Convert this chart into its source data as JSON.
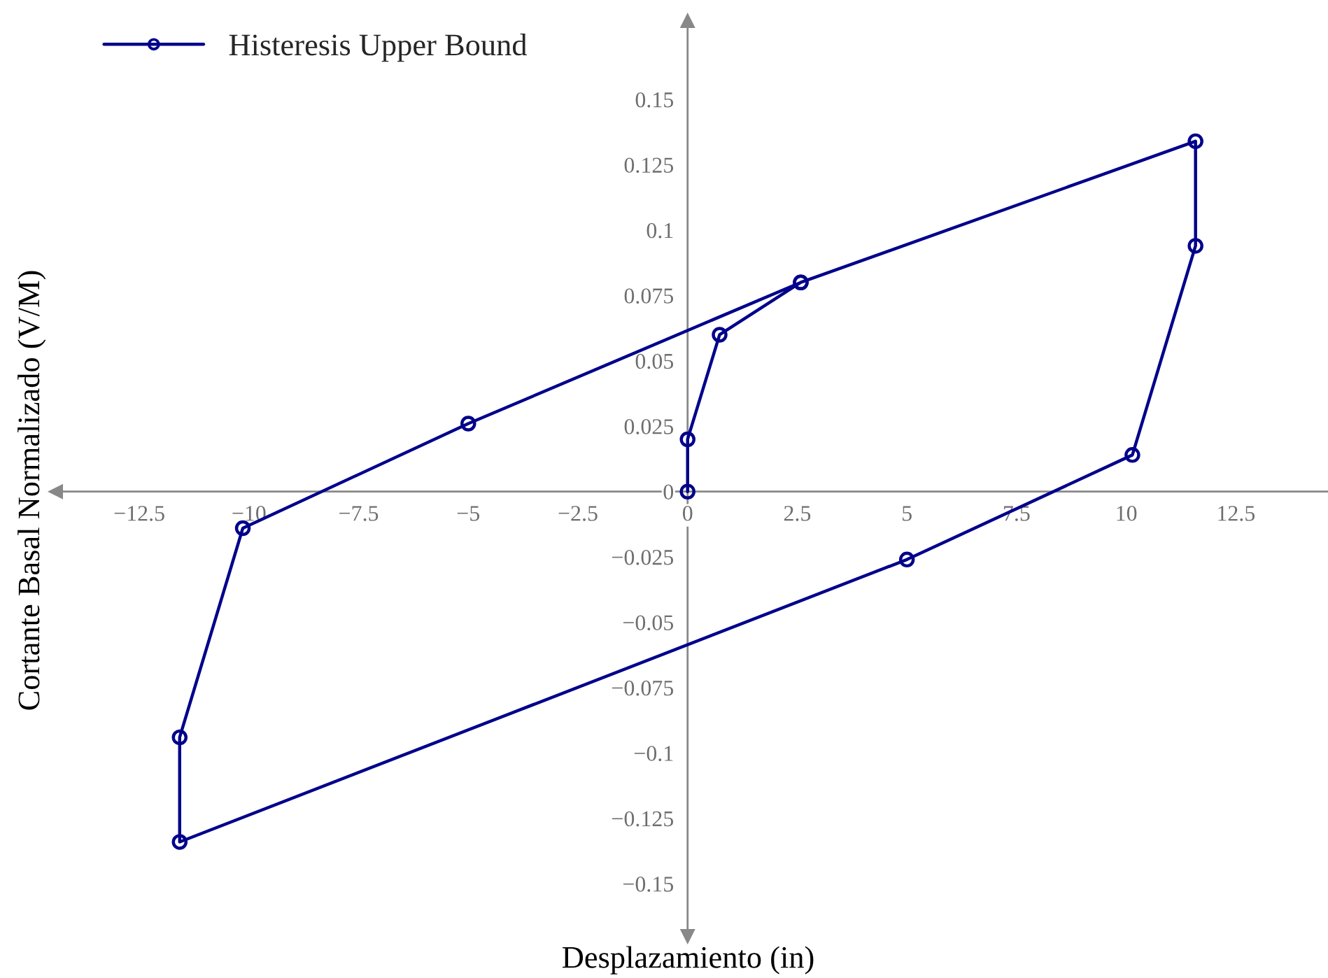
{
  "chart_data": {
    "type": "line",
    "xlabel": "Desplazamiento (in)",
    "ylabel": "Cortante Basal Normalizado (V/M)",
    "x": [
      0,
      0,
      0.73,
      2.58,
      11.58,
      11.58,
      10.14,
      5,
      -11.58,
      -11.58,
      -10.14,
      -5,
      2.58
    ],
    "series": [
      {
        "name": "Histeresis Upper Bound",
        "color": "#00008b",
        "values": [
          0,
          0.02,
          0.06,
          0.08,
          0.134,
          0.094,
          0.014,
          -0.026,
          -0.134,
          -0.094,
          -0.014,
          0.026,
          0.08
        ]
      }
    ],
    "xlim": [
      -14.4,
      14.6
    ],
    "ylim": [
      -0.17,
      0.18
    ],
    "xticks": [
      {
        "value": -12.5,
        "label": "−12.5"
      },
      {
        "value": -10,
        "label": "−10"
      },
      {
        "value": -7.5,
        "label": "−7.5"
      },
      {
        "value": -5,
        "label": "−5"
      },
      {
        "value": -2.5,
        "label": "−2.5"
      },
      0,
      2.5,
      5,
      7.5,
      10,
      12.5
    ],
    "yticks": [
      {
        "value": -0.15,
        "label": "−0.15"
      },
      {
        "value": -0.125,
        "label": "−0.125"
      },
      {
        "value": -0.1,
        "label": "−0.1"
      },
      {
        "value": -0.075,
        "label": "−0.075"
      },
      {
        "value": -0.05,
        "label": "−0.05"
      },
      {
        "value": -0.025,
        "label": "−0.025"
      },
      0,
      0.025,
      0.05,
      0.075,
      0.1,
      0.125,
      0.15
    ],
    "marker": "circle",
    "line_style": "solid",
    "legend": "top left",
    "grid": false
  }
}
